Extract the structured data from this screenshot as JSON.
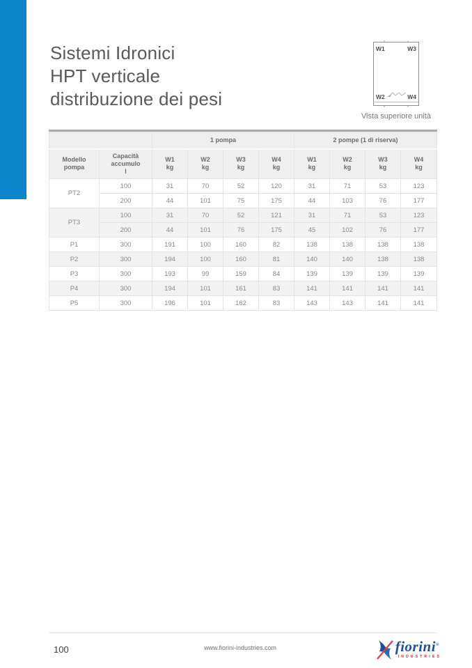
{
  "title": {
    "lines": [
      "Sistemi Idronici",
      "HPT verticale",
      "distribuzione dei pesi"
    ]
  },
  "diagram": {
    "corner_labels": {
      "top_left": "W1",
      "top_right": "W3",
      "bottom_left": "W2",
      "bottom_right": "W4"
    },
    "caption": "Vista superiore unità"
  },
  "table": {
    "group_headers": [
      {
        "label": "",
        "span": 2
      },
      {
        "label": "1 pompa",
        "span": 4
      },
      {
        "label": "2 pompe (1 di riserva)",
        "span": 4
      }
    ],
    "column_headers": [
      "Modello\npompa",
      "Capacità\naccumulo\nl",
      "W1\nkg",
      "W2\nkg",
      "W3\nkg",
      "W4\nkg",
      "W1\nkg",
      "W2\nkg",
      "W3\nkg",
      "W4\nkg"
    ],
    "rows": [
      {
        "model": "PT2",
        "shaded": false,
        "entries": [
          {
            "capacity": "100",
            "weights": [
              "31",
              "70",
              "52",
              "120",
              "31",
              "71",
              "53",
              "123"
            ]
          },
          {
            "capacity": "200",
            "weights": [
              "44",
              "101",
              "75",
              "175",
              "44",
              "103",
              "76",
              "177"
            ]
          }
        ]
      },
      {
        "model": "PT3",
        "shaded": true,
        "entries": [
          {
            "capacity": "100",
            "weights": [
              "31",
              "70",
              "52",
              "121",
              "31",
              "71",
              "53",
              "123"
            ]
          },
          {
            "capacity": "200",
            "weights": [
              "44",
              "101",
              "76",
              "175",
              "45",
              "102",
              "76",
              "177"
            ]
          }
        ]
      },
      {
        "model": "P1",
        "shaded": false,
        "entries": [
          {
            "capacity": "300",
            "weights": [
              "191",
              "100",
              "160",
              "82",
              "138",
              "138",
              "138",
              "138"
            ]
          }
        ]
      },
      {
        "model": "P2",
        "shaded": true,
        "entries": [
          {
            "capacity": "300",
            "weights": [
              "194",
              "100",
              "160",
              "81",
              "140",
              "140",
              "138",
              "138"
            ]
          }
        ]
      },
      {
        "model": "P3",
        "shaded": false,
        "entries": [
          {
            "capacity": "300",
            "weights": [
              "193",
              "99",
              "159",
              "84",
              "139",
              "139",
              "139",
              "139"
            ]
          }
        ]
      },
      {
        "model": "P4",
        "shaded": true,
        "entries": [
          {
            "capacity": "300",
            "weights": [
              "194",
              "101",
              "161",
              "83",
              "141",
              "141",
              "141",
              "141"
            ]
          }
        ]
      },
      {
        "model": "P5",
        "shaded": false,
        "entries": [
          {
            "capacity": "300",
            "weights": [
              "196",
              "101",
              "162",
              "83",
              "143",
              "143",
              "141",
              "141"
            ]
          }
        ]
      }
    ]
  },
  "footer": {
    "page_number": "100",
    "website": "www.fiorini-industries.com",
    "logo": {
      "name": "fiorini",
      "trademark": "®",
      "subtitle": "INDUSTRIES"
    }
  },
  "colors": {
    "accent_blue": "#0b86cc",
    "table_top_bar": "#a8aaad",
    "header_bg": "#efefef",
    "stripe_bg": "#f2f2f3",
    "logo_blue": "#1d4f9e",
    "logo_red": "#d2232e"
  }
}
